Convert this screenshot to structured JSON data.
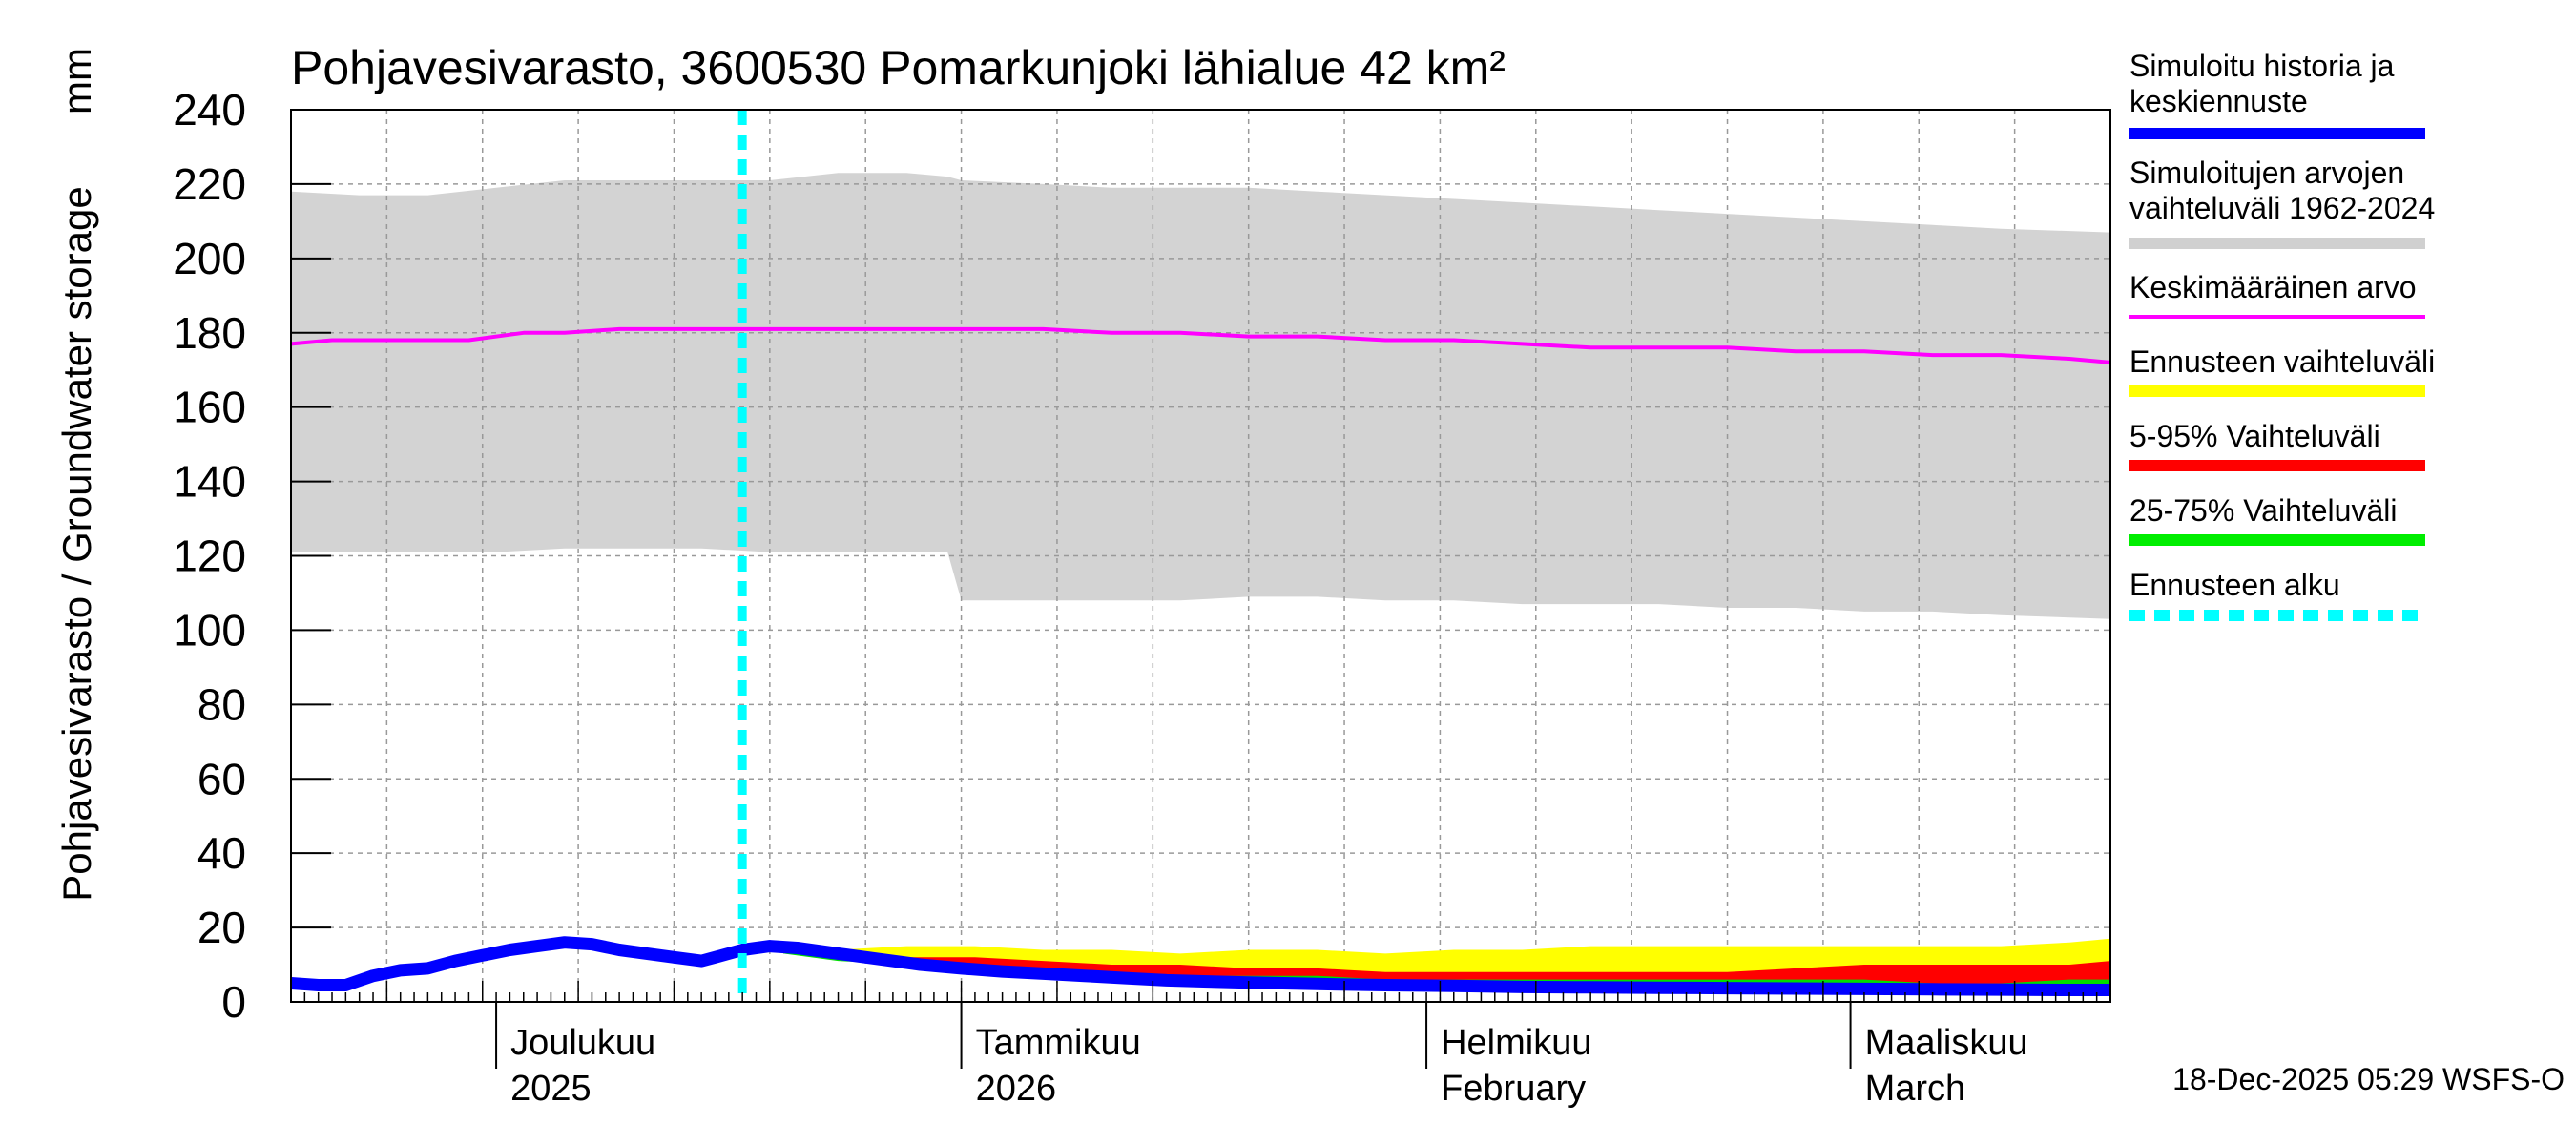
{
  "chart_data": {
    "type": "area",
    "title": "Pohjavesivarasto, 3600530 Pomarkunjoki lähialue 42 km²",
    "ylabel": "Pohjavesivarasto / Groundwater storage",
    "yunit": "mm",
    "ylim": [
      0,
      240
    ],
    "yticks": [
      0,
      20,
      40,
      60,
      80,
      100,
      120,
      140,
      160,
      180,
      200,
      220,
      240
    ],
    "xdomain_days": [
      0,
      133
    ],
    "forecast_start_day": 33,
    "month_ticks": [
      {
        "day": 15,
        "line1": "Joulukuu",
        "line2": "2025"
      },
      {
        "day": 49,
        "line1": "Tammikuu",
        "line2": "2026"
      },
      {
        "day": 83,
        "line1": "Helmikuu",
        "line2": "February"
      },
      {
        "day": 114,
        "line1": "Maaliskuu",
        "line2": "March"
      }
    ],
    "hist_range": {
      "days": [
        0,
        5,
        10,
        15,
        20,
        25,
        30,
        35,
        40,
        45,
        48,
        49,
        55,
        60,
        65,
        70,
        75,
        80,
        85,
        90,
        95,
        100,
        105,
        110,
        115,
        120,
        125,
        133
      ],
      "upper": [
        218,
        217,
        217,
        219,
        221,
        221,
        221,
        221,
        223,
        223,
        222,
        221,
        220,
        219,
        219,
        219,
        218,
        217,
        216,
        215,
        214,
        213,
        212,
        211,
        210,
        209,
        208,
        207
      ],
      "lower": [
        121,
        121,
        121,
        121,
        122,
        122,
        122,
        121,
        121,
        121,
        121,
        108,
        108,
        108,
        108,
        109,
        109,
        108,
        108,
        107,
        107,
        107,
        106,
        106,
        105,
        105,
        104,
        103
      ]
    },
    "mean": {
      "days": [
        0,
        3,
        6,
        10,
        13,
        17,
        20,
        24,
        28,
        32,
        36,
        40,
        44,
        50,
        55,
        60,
        65,
        70,
        75,
        80,
        85,
        90,
        95,
        100,
        105,
        110,
        115,
        120,
        125,
        130,
        133
      ],
      "values": [
        177,
        178,
        178,
        178,
        178,
        180,
        180,
        181,
        181,
        181,
        181,
        181,
        181,
        181,
        181,
        180,
        180,
        179,
        179,
        178,
        178,
        177,
        176,
        176,
        176,
        175,
        175,
        174,
        174,
        173,
        172
      ]
    },
    "forecast_yellow": {
      "days": [
        36,
        40,
        45,
        50,
        55,
        60,
        65,
        70,
        75,
        80,
        85,
        90,
        95,
        100,
        105,
        110,
        115,
        120,
        125,
        130,
        133
      ],
      "upper": [
        14,
        14,
        15,
        15,
        14,
        14,
        13,
        14,
        14,
        13,
        14,
        14,
        15,
        15,
        15,
        15,
        15,
        15,
        15,
        16,
        17
      ],
      "lower": [
        13,
        12,
        11,
        9,
        8,
        7,
        6,
        5,
        5,
        4,
        4,
        4,
        3,
        3,
        3,
        3,
        3,
        3,
        2,
        2,
        2
      ]
    },
    "forecast_red": {
      "days": [
        36,
        40,
        45,
        50,
        55,
        60,
        65,
        70,
        75,
        80,
        85,
        90,
        95,
        100,
        105,
        110,
        115,
        120,
        125,
        130,
        133
      ],
      "upper": [
        14,
        13,
        12,
        12,
        11,
        10,
        10,
        9,
        9,
        8,
        8,
        8,
        8,
        8,
        8,
        9,
        10,
        10,
        10,
        10,
        11
      ],
      "lower": [
        13,
        12,
        11,
        9,
        8,
        7,
        6,
        5,
        5,
        4,
        4,
        4,
        3,
        3,
        3,
        3,
        3,
        3,
        3,
        3,
        3
      ]
    },
    "forecast_green": {
      "days": [
        36,
        40,
        45,
        50,
        55,
        60,
        65,
        70,
        75,
        80,
        85,
        90,
        95,
        100,
        105,
        110,
        115,
        120,
        125,
        130,
        133
      ],
      "upper": [
        14,
        12,
        11,
        9,
        8,
        8,
        7,
        7,
        7,
        6,
        6,
        6,
        6,
        6,
        6,
        6,
        6,
        5,
        5,
        6,
        6
      ],
      "lower": [
        13,
        11,
        10,
        8,
        7,
        6,
        5,
        5,
        4,
        4,
        4,
        3,
        3,
        3,
        3,
        3,
        3,
        3,
        3,
        3,
        3
      ]
    },
    "median": {
      "days": [
        0,
        2,
        4,
        6,
        8,
        10,
        12,
        14,
        16,
        18,
        20,
        22,
        24,
        26,
        28,
        30,
        31,
        33,
        35,
        37,
        40,
        43,
        46,
        49,
        52,
        55,
        58,
        61,
        64,
        67,
        70,
        75,
        80,
        85,
        90,
        95,
        100,
        105,
        110,
        115,
        120,
        125,
        130,
        133
      ],
      "values": [
        5,
        4.5,
        4.5,
        7,
        8.5,
        9,
        11,
        12.5,
        14,
        15,
        16,
        15.5,
        14,
        13,
        12,
        11,
        12,
        14,
        15,
        14.5,
        13,
        11.5,
        10,
        9,
        8.2,
        7.6,
        7,
        6.4,
        5.8,
        5.5,
        5.2,
        4.8,
        4.5,
        4.3,
        4,
        3.9,
        3.8,
        3.7,
        3.6,
        3.5,
        3.4,
        3.3,
        3.2,
        3.2
      ]
    },
    "legend": [
      {
        "line1": "Simuloitu historia ja",
        "line2": "keskiennuste",
        "color": "#0000ff",
        "style": "solid"
      },
      {
        "line1": "Simuloitujen arvojen",
        "line2": "vaihteluväli 1962-2024",
        "color": "#d0d0d0",
        "style": "solid"
      },
      {
        "line1": "Keskimääräinen arvo",
        "line2": "",
        "color": "#ff00ff",
        "style": "solid"
      },
      {
        "line1": "Ennusteen vaihteluväli",
        "line2": "",
        "color": "#ffff00",
        "style": "solid"
      },
      {
        "line1": "5-95% Vaihteluväli",
        "line2": "",
        "color": "#ff0000",
        "style": "solid"
      },
      {
        "line1": "25-75% Vaihteluväli",
        "line2": "",
        "color": "#00ee00",
        "style": "solid"
      },
      {
        "line1": "Ennusteen alku",
        "line2": "",
        "color": "#00ffff",
        "style": "dashed"
      }
    ],
    "footer": "18-Dec-2025 05:29 WSFS-O"
  },
  "colors": {
    "hist_range": "#d3d3d3",
    "mean": "#ff00ff",
    "median": "#0000ff",
    "yellow": "#ffff00",
    "red": "#ff0000",
    "green": "#00dd00",
    "forecast_line": "#00ffff",
    "grid": "#999999"
  }
}
